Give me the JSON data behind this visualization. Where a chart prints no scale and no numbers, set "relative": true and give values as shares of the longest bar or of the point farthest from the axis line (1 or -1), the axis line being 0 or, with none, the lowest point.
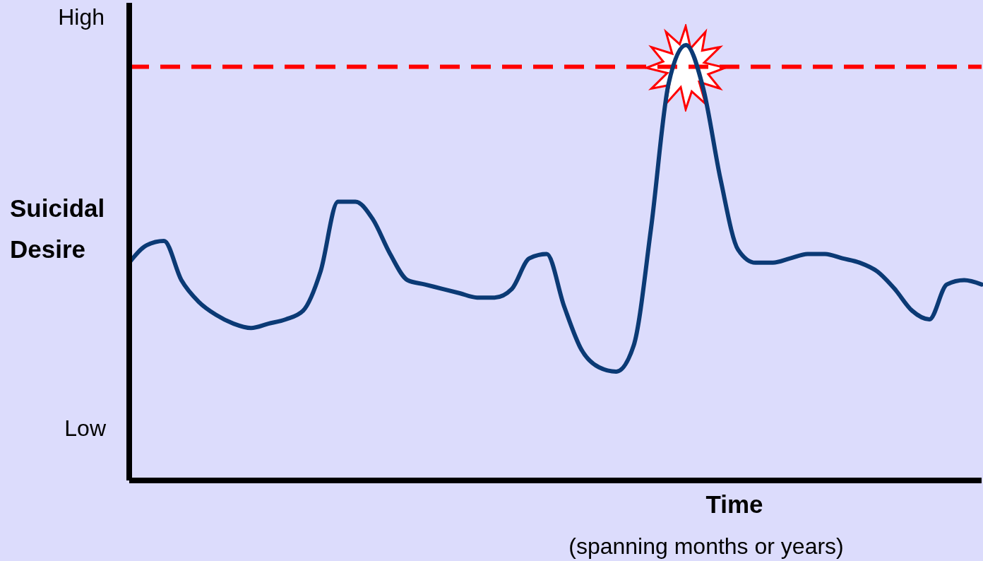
{
  "chart_data": {
    "type": "line",
    "relative": true,
    "xlabel": "Time",
    "ylabel": "Suicidal Desire",
    "annotations": [
      "High",
      "Low",
      "(spanning months or years)"
    ],
    "categories": [
      null,
      null,
      null,
      null,
      null,
      null,
      null,
      null,
      null,
      null,
      null,
      null,
      null,
      null,
      null,
      null,
      null,
      null,
      null,
      null,
      null,
      null,
      null,
      null,
      null,
      null,
      null,
      null,
      null,
      null,
      null,
      null,
      null,
      null,
      null,
      null,
      null,
      null,
      null,
      null,
      null,
      null,
      null,
      null,
      null,
      null,
      null,
      null,
      null,
      null
    ],
    "series": [
      {
        "color": "#0b3a75",
        "values": [
          0.5,
          0.54,
          0.55,
          0.46,
          0.41,
          0.38,
          0.36,
          0.35,
          0.36,
          0.37,
          0.39,
          0.48,
          0.64,
          0.64,
          0.6,
          0.52,
          0.46,
          0.45,
          0.44,
          0.43,
          0.42,
          0.42,
          0.44,
          0.51,
          0.52,
          0.4,
          0.3,
          0.26,
          0.25,
          0.31,
          0.58,
          0.91,
          1.0,
          0.9,
          0.69,
          0.53,
          0.5,
          0.5,
          0.51,
          0.52,
          0.52,
          0.51,
          0.5,
          0.48,
          0.44,
          0.39,
          0.37,
          0.45,
          0.46,
          0.45
        ]
      }
    ],
    "ref_lines": [
      {
        "axis": "y",
        "value": 0.95,
        "color": "#ff0000",
        "line_style": "dashed"
      }
    ],
    "marker": "none",
    "line_style": "solid"
  }
}
